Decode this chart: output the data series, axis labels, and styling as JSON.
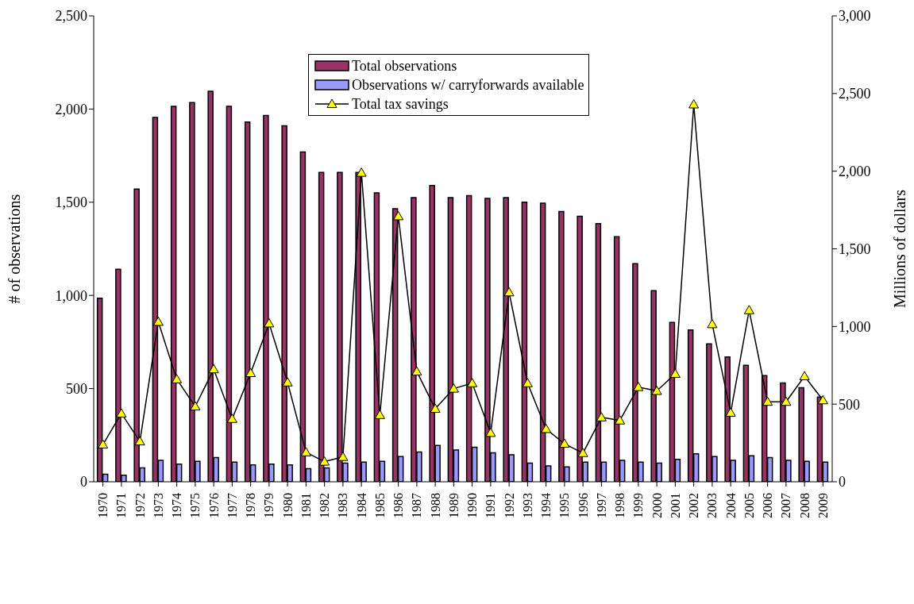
{
  "chart_data": {
    "type": "bar",
    "categories": [
      "1970",
      "1971",
      "1972",
      "1973",
      "1974",
      "1975",
      "1976",
      "1977",
      "1978",
      "1979",
      "1980",
      "1981",
      "1982",
      "1983",
      "1984",
      "1985",
      "1986",
      "1987",
      "1988",
      "1989",
      "1990",
      "1991",
      "1992",
      "1993",
      "1994",
      "1995",
      "1996",
      "1997",
      "1998",
      "1999",
      "2000",
      "2001",
      "2002",
      "2003",
      "2004",
      "2005",
      "2006",
      "2007",
      "2008",
      "2009"
    ],
    "ylabel": "# of observations",
    "y2label": "Millions of dollars",
    "series": [
      {
        "name": "Total observations",
        "type": "bar",
        "color": "#993366",
        "values": [
          985,
          1140,
          1570,
          1955,
          2015,
          2035,
          2095,
          2015,
          1930,
          1965,
          1910,
          1770,
          1660,
          1660,
          1660,
          1550,
          1465,
          1525,
          1590,
          1525,
          1535,
          1520,
          1525,
          1500,
          1495,
          1450,
          1425,
          1385,
          1315,
          1170,
          1025,
          855,
          815,
          740,
          670,
          625,
          570,
          530,
          505,
          455
        ]
      },
      {
        "name": "Observations w/ carryforwards available",
        "type": "bar",
        "color": "#9999ff",
        "values": [
          40,
          35,
          75,
          115,
          95,
          110,
          130,
          105,
          90,
          95,
          90,
          70,
          75,
          100,
          105,
          110,
          135,
          160,
          195,
          170,
          185,
          155,
          145,
          100,
          85,
          80,
          105,
          105,
          115,
          105,
          100,
          120,
          150,
          135,
          115,
          140,
          130,
          115,
          110,
          105
        ]
      },
      {
        "name": "Total tax savings",
        "type": "line",
        "axis": "y2",
        "color": "#ffff00",
        "marker": "triangle",
        "values": [
          240,
          440,
          260,
          1030,
          660,
          485,
          725,
          405,
          700,
          1020,
          640,
          190,
          130,
          160,
          1990,
          430,
          1710,
          710,
          470,
          600,
          635,
          315,
          1220,
          635,
          340,
          245,
          185,
          415,
          395,
          610,
          585,
          695,
          2430,
          1015,
          445,
          1105,
          515,
          515,
          680,
          525
        ]
      }
    ],
    "ylim": [
      0,
      2500
    ],
    "yticks": [
      {
        "value": 0,
        "label": "0"
      },
      {
        "value": 500,
        "label": "500"
      },
      {
        "value": 1000,
        "label": "1,000"
      },
      {
        "value": 1500,
        "label": "1,500"
      },
      {
        "value": 2000,
        "label": "2,000"
      },
      {
        "value": 2500,
        "label": "2,500"
      }
    ],
    "y2lim": [
      0,
      3000
    ],
    "y2ticks": [
      {
        "value": 0,
        "label": "0"
      },
      {
        "value": 500,
        "label": "500"
      },
      {
        "value": 1000,
        "label": "1,000"
      },
      {
        "value": 1500,
        "label": "1,500"
      },
      {
        "value": 2000,
        "label": "2,000"
      },
      {
        "value": 2500,
        "label": "2,500"
      },
      {
        "value": 3000,
        "label": "3,000"
      }
    ],
    "grid": false,
    "legend": "top"
  }
}
